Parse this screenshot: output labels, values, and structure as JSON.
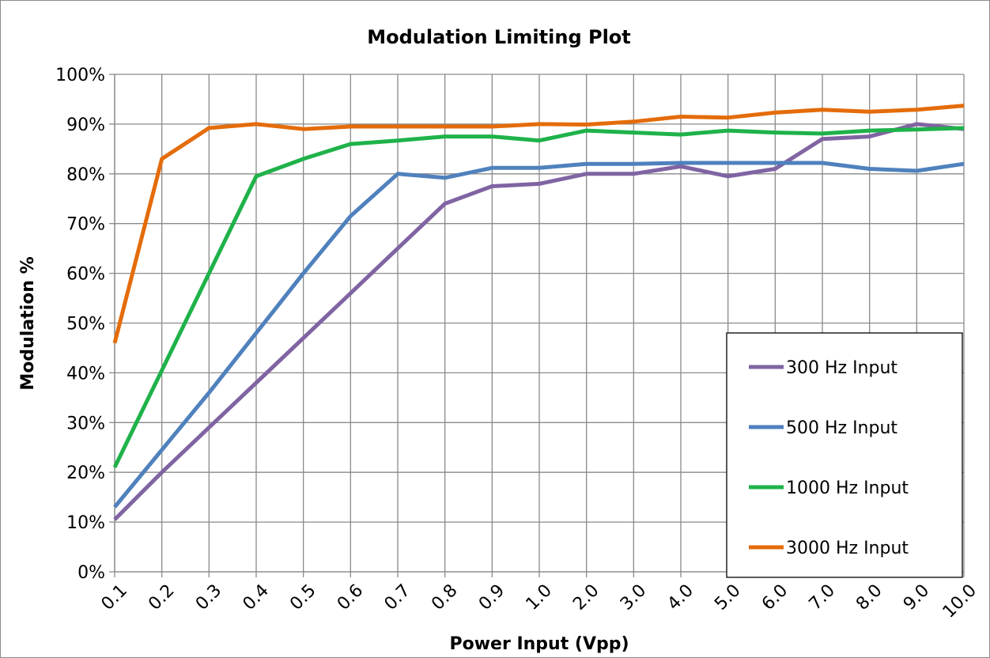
{
  "chart_data": {
    "type": "line",
    "title": "Modulation Limiting Plot",
    "xlabel": "Power Input (Vpp)",
    "ylabel": "Modulation %",
    "categories": [
      "0.1",
      "0.2",
      "0.3",
      "0.4",
      "0.5",
      "0.6",
      "0.7",
      "0.8",
      "0.9",
      "1.0",
      "2.0",
      "3.0",
      "4.0",
      "5.0",
      "6.0",
      "7.0",
      "8.0",
      "9.0",
      "10.0"
    ],
    "y_ticks": [
      "0%",
      "10%",
      "20%",
      "30%",
      "40%",
      "50%",
      "60%",
      "70%",
      "80%",
      "90%",
      "100%"
    ],
    "ylim": [
      0,
      100
    ],
    "grid": true,
    "legend_position": "bottom-right",
    "series": [
      {
        "name": "300 Hz Input",
        "color": "#8064a2",
        "values": [
          10.5,
          20,
          29,
          38,
          47,
          56,
          65,
          74,
          77.5,
          78,
          80,
          80,
          81.5,
          79.5,
          81,
          87,
          87.5,
          90,
          89
        ]
      },
      {
        "name": "500 Hz Input",
        "color": "#4f81bd",
        "values": [
          13,
          24.5,
          36,
          48,
          60,
          71.5,
          80,
          79.2,
          81.2,
          81.2,
          82,
          82,
          82.2,
          82.2,
          82.2,
          82.2,
          81,
          80.6,
          82
        ]
      },
      {
        "name": "1000 Hz Input",
        "color": "#1fb24a",
        "values": [
          21,
          40.5,
          60,
          79.5,
          83,
          86,
          86.7,
          87.5,
          87.5,
          86.7,
          88.7,
          88.3,
          87.9,
          88.7,
          88.3,
          88.1,
          88.7,
          88.9,
          89.2
        ]
      },
      {
        "name": "3000 Hz Input",
        "color": "#e46c0a",
        "values": [
          46,
          83,
          89.2,
          90,
          89,
          89.5,
          89.5,
          89.5,
          89.5,
          90,
          89.9,
          90.5,
          91.5,
          91.3,
          92.3,
          92.9,
          92.5,
          92.9,
          93.7
        ]
      }
    ]
  }
}
